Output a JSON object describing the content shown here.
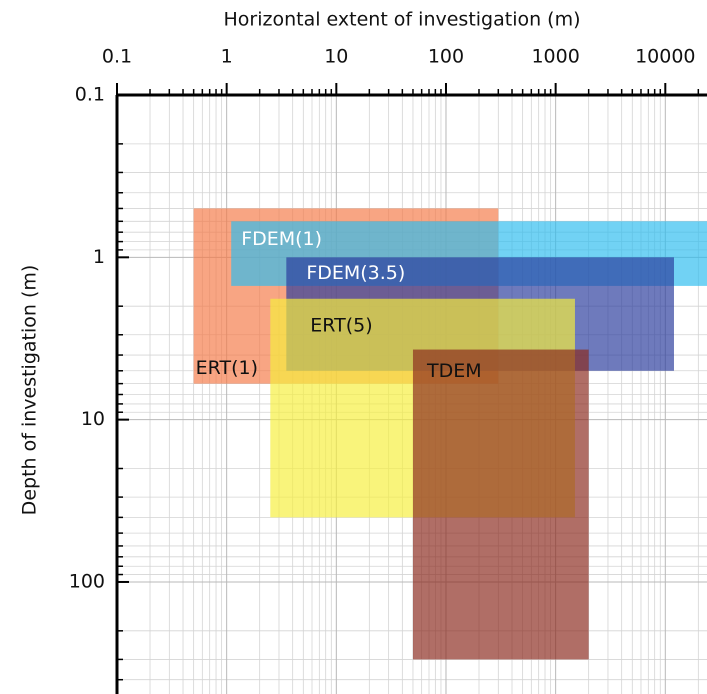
{
  "chart_data": {
    "type": "range-rect",
    "xlabel": "Horizontal extent of investigation (m)",
    "ylabel": "Depth of investigation (m)",
    "xscale": "log",
    "yscale": "log",
    "y_inverted": true,
    "grid": true,
    "xlim": [
      0.1,
      24000
    ],
    "ylim": [
      0.1,
      490
    ],
    "xticks": [
      0.1,
      1,
      10,
      100,
      1000,
      10000
    ],
    "yticks": [
      0.1,
      1,
      10,
      100
    ],
    "series": [
      {
        "name": "ERT(1)",
        "color": "#f47a48",
        "x": [
          0.5,
          300
        ],
        "y": [
          0.5,
          6
        ]
      },
      {
        "name": "FDEM(1)",
        "color": "#2ebcef",
        "x": [
          1.1,
          24000
        ],
        "y": [
          0.6,
          1.5
        ]
      },
      {
        "name": "FDEM(3.5)",
        "color": "#2a3b9c",
        "x": [
          3.5,
          12000
        ],
        "y": [
          1,
          5
        ]
      },
      {
        "name": "ERT(5)",
        "color": "#f6ef3c",
        "x": [
          2.5,
          1500
        ],
        "y": [
          1.8,
          40
        ]
      },
      {
        "name": "TDEM",
        "color": "#8a2a1e",
        "x": [
          50,
          2000
        ],
        "y": [
          3.7,
          300
        ]
      }
    ]
  }
}
